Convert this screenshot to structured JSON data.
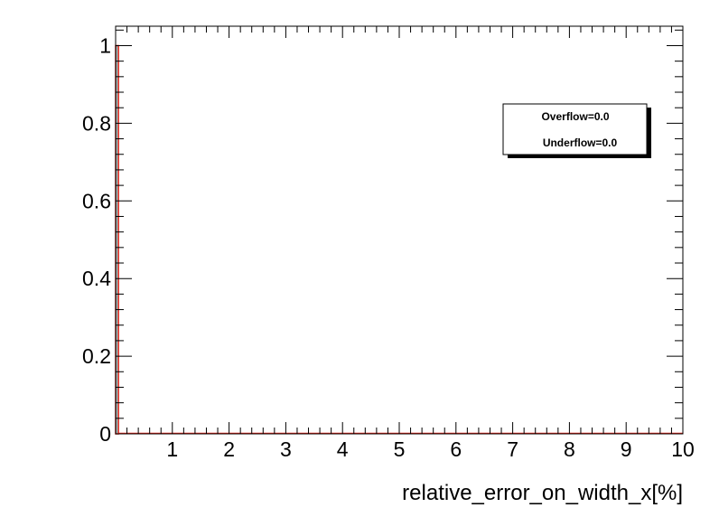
{
  "chart_data": {
    "type": "bar",
    "title": "",
    "xlabel": "relative_error_on_width_x[%]",
    "ylabel": "",
    "xlim": [
      0,
      10
    ],
    "ylim": [
      0,
      1.05
    ],
    "x_ticks": [
      "1",
      "2",
      "3",
      "4",
      "5",
      "6",
      "7",
      "8",
      "9",
      "10"
    ],
    "y_ticks": [
      "0",
      "0.2",
      "0.4",
      "0.6",
      "0.8",
      "1"
    ],
    "bins": [
      {
        "x_low": 0.0,
        "x_high": 0.05,
        "value": 1.0
      }
    ],
    "stats": {
      "overflow": "Overflow=0.0",
      "underflow": "Underflow=0.0"
    },
    "colors": {
      "line": "#e8261c",
      "fill": "#8fc8c8",
      "frame": "#000000"
    }
  }
}
